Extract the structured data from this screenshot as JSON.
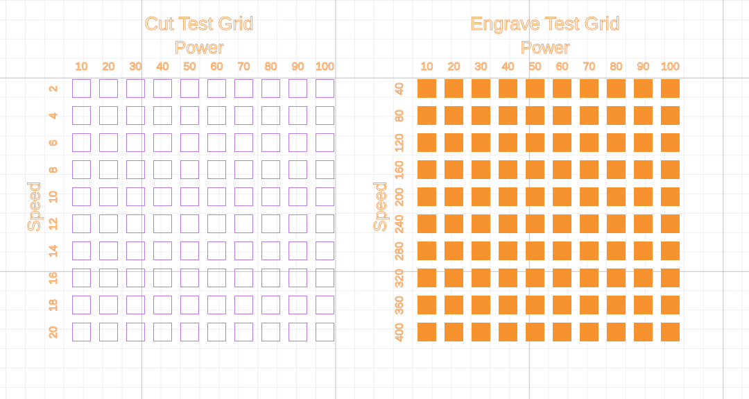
{
  "colors": {
    "cut": "#b57be8",
    "engrave": "#f7932f",
    "text": "#f5a764"
  },
  "grids": [
    {
      "id": "cut",
      "title": "Cut Test Grid",
      "x_label": "Power",
      "y_label": "Speed",
      "power": [
        "10",
        "20",
        "30",
        "40",
        "50",
        "60",
        "70",
        "80",
        "90",
        "100"
      ],
      "speed": [
        "2",
        "4",
        "6",
        "8",
        "10",
        "12",
        "14",
        "16",
        "18",
        "20"
      ],
      "style": "outline"
    },
    {
      "id": "engrave",
      "title": "Engrave Test Grid",
      "x_label": "Power",
      "y_label": "Speed",
      "power": [
        "10",
        "20",
        "30",
        "40",
        "50",
        "60",
        "70",
        "80",
        "90",
        "100"
      ],
      "speed": [
        "40",
        "80",
        "120",
        "160",
        "200",
        "240",
        "280",
        "320",
        "360",
        "400"
      ],
      "style": "filled"
    }
  ]
}
